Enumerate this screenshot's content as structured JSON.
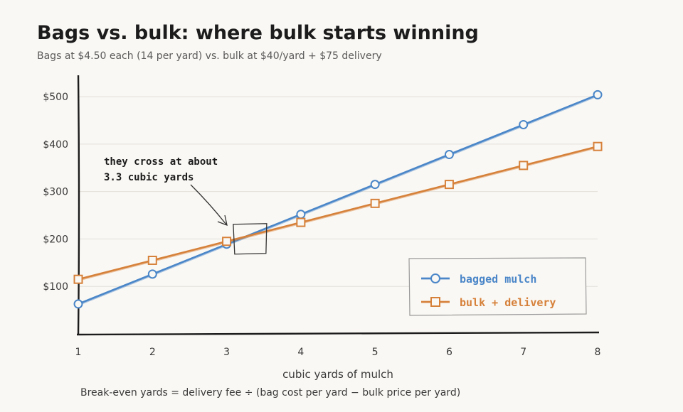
{
  "chart_data": {
    "type": "line",
    "title": "Bags vs. bulk: where bulk starts winning",
    "subtitle": "Bags at $4.50 each (14 per yard) vs. bulk at $40/yard + $75 delivery",
    "xlabel": "cubic yards of mulch",
    "ylabel": "",
    "x": [
      1,
      2,
      3,
      4,
      5,
      6,
      7,
      8
    ],
    "x_tick_labels": [
      "1",
      "2",
      "3",
      "4",
      "5",
      "6",
      "7",
      "8"
    ],
    "xlim": [
      1,
      8
    ],
    "y_ticks": [
      100,
      200,
      300,
      400,
      500
    ],
    "y_tick_labels": [
      "$100",
      "$200",
      "$300",
      "$400",
      "$500"
    ],
    "ylim": [
      0,
      560
    ],
    "grid": "horizontal",
    "legend_position": "bottom-right",
    "series": [
      {
        "name": "bagged mulch",
        "color": "#4a86c8",
        "marker": "circle",
        "values": [
          63,
          126,
          189,
          252,
          315,
          378,
          441,
          504
        ]
      },
      {
        "name": "bulk + delivery",
        "color": "#d6813a",
        "marker": "square",
        "values": [
          115,
          155,
          195,
          235,
          275,
          315,
          355,
          395
        ]
      }
    ],
    "annotation": {
      "lines": [
        "they cross at about",
        "3.3 cubic yards"
      ],
      "target_x": 3.3,
      "target_y": 192
    },
    "footnote": "Break-even yards = delivery fee ÷ (bag cost per yard − bulk price per yard)"
  }
}
